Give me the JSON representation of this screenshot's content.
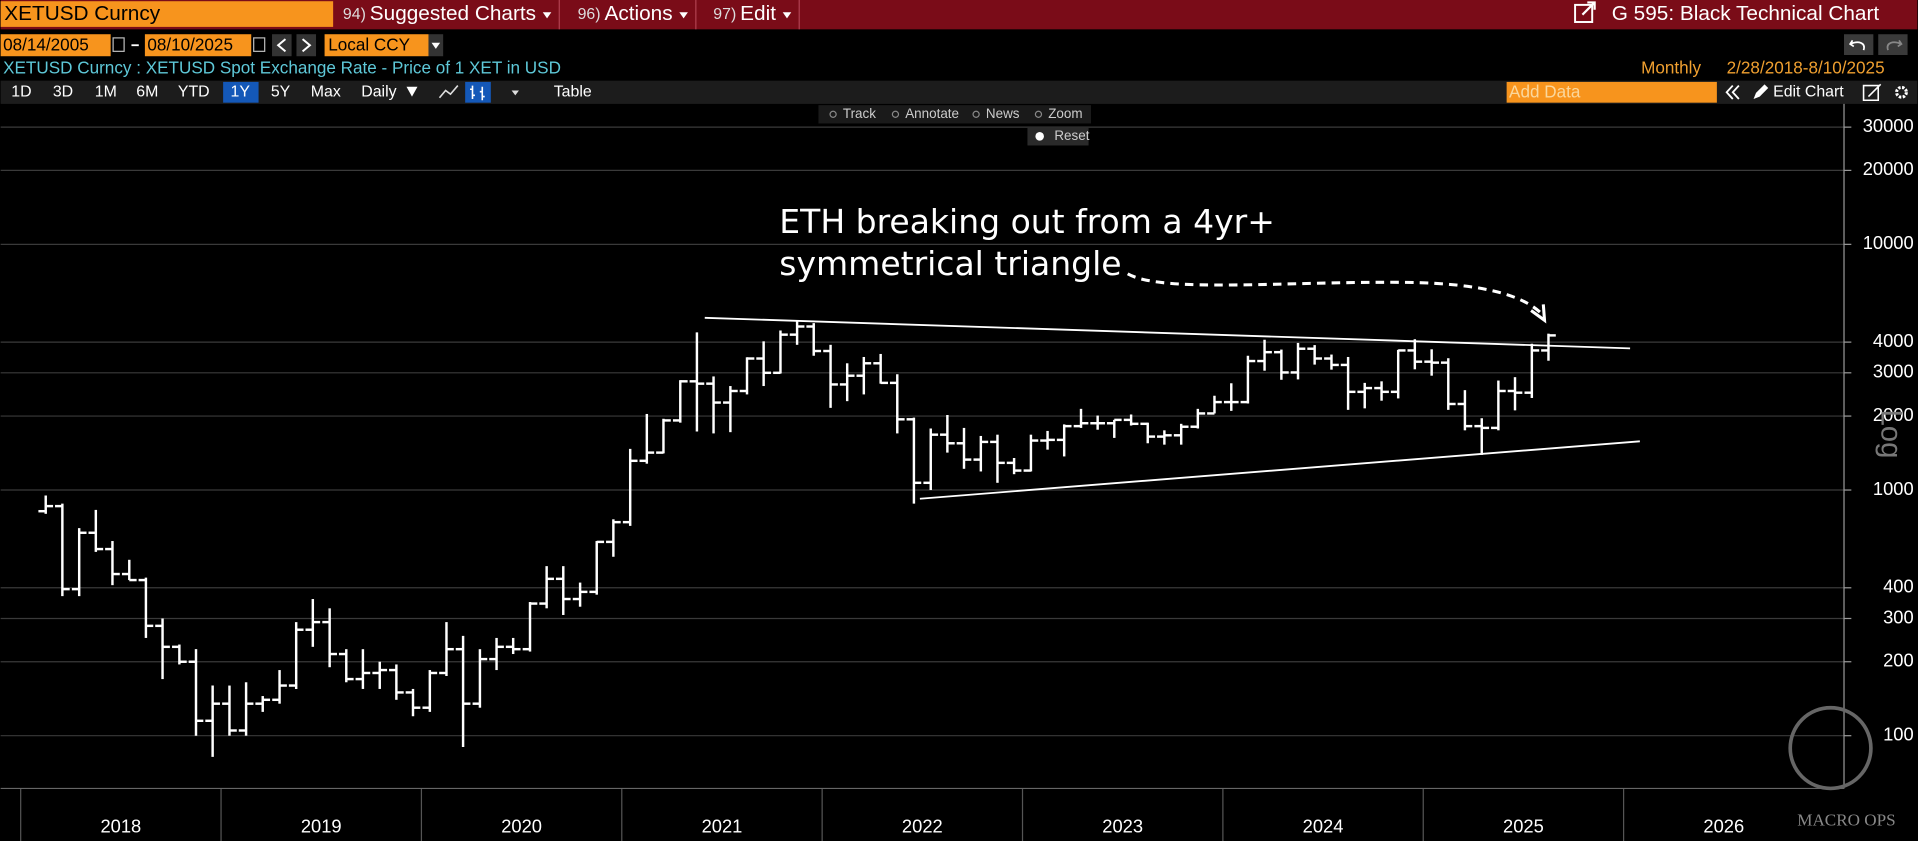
{
  "ui": {
    "security": "XETUSD Curncy",
    "menu": [
      {
        "key": "94)",
        "label": "Suggested Charts"
      },
      {
        "key": "96)",
        "label": "Actions"
      },
      {
        "key": "97)",
        "label": "Edit"
      }
    ],
    "page_title": "G 595: Black Technical Chart",
    "start_date": "08/14/2005",
    "end_date": "08/10/2025",
    "currency": "Local CCY",
    "description": "XETUSD Curncy : XETUSD Spot Exchange Rate - Price of 1 XET in USD",
    "periodicity": "Monthly",
    "range": "2/28/2018-8/10/2025",
    "periods": [
      "1D",
      "3D",
      "1M",
      "6M",
      "YTD",
      "1Y",
      "5Y",
      "Max"
    ],
    "frequency": "Daily",
    "table_button": "Table",
    "add_data": "Add Data",
    "edit_chart": "Edit Chart",
    "tools": [
      "Track",
      "Annotate",
      "News",
      "Zoom"
    ],
    "reset": "Reset",
    "scale_label": "Log",
    "watermark": "MACRO OPS"
  },
  "chart_data": {
    "type": "ohlc",
    "color": "#ffffff",
    "log_scale": true,
    "grid": true,
    "annotation": [
      "ETH breaking out from a 4yr+",
      "symmetrical triangle"
    ],
    "xlim": [
      2017.9,
      2027.1
    ],
    "xticks": [
      2018,
      2019,
      2020,
      2021,
      2022,
      2023,
      2024,
      2025,
      2026
    ],
    "ylim": [
      61,
      37300
    ],
    "yticks": [
      100,
      200,
      300,
      400,
      1000,
      2000,
      3000,
      4000,
      10000,
      20000,
      30000
    ],
    "x": [
      2018.125,
      2018.208,
      2018.292,
      2018.375,
      2018.458,
      2018.542,
      2018.625,
      2018.708,
      2018.792,
      2018.875,
      2018.958,
      2019.042,
      2019.125,
      2019.208,
      2019.292,
      2019.375,
      2019.458,
      2019.542,
      2019.625,
      2019.708,
      2019.792,
      2019.875,
      2019.958,
      2020.042,
      2020.125,
      2020.208,
      2020.292,
      2020.375,
      2020.458,
      2020.542,
      2020.625,
      2020.708,
      2020.792,
      2020.875,
      2020.958,
      2021.042,
      2021.125,
      2021.208,
      2021.292,
      2021.375,
      2021.458,
      2021.542,
      2021.625,
      2021.708,
      2021.792,
      2021.875,
      2021.958,
      2022.042,
      2022.125,
      2022.208,
      2022.292,
      2022.375,
      2022.458,
      2022.542,
      2022.625,
      2022.708,
      2022.792,
      2022.875,
      2022.958,
      2023.042,
      2023.125,
      2023.208,
      2023.292,
      2023.375,
      2023.458,
      2023.542,
      2023.625,
      2023.708,
      2023.792,
      2023.875,
      2023.958,
      2024.042,
      2024.125,
      2024.208,
      2024.292,
      2024.375,
      2024.458,
      2024.542,
      2024.625,
      2024.708,
      2024.792,
      2024.875,
      2024.958,
      2025.042,
      2025.125,
      2025.208,
      2025.292,
      2025.375,
      2025.458,
      2025.542,
      2025.625
    ],
    "open": [
      820,
      860,
      395,
      670,
      575,
      455,
      430,
      280,
      230,
      200,
      115,
      135,
      105,
      135,
      140,
      160,
      270,
      290,
      215,
      170,
      180,
      185,
      150,
      130,
      180,
      225,
      135,
      205,
      230,
      225,
      345,
      435,
      360,
      385,
      615,
      740,
      1315,
      1420,
      1920,
      2770,
      2710,
      2270,
      2530,
      3430,
      3000,
      4290,
      4630,
      3680,
      2690,
      2920,
      3280,
      2730,
      1940,
      1070,
      1680,
      1550,
      1330,
      1570,
      1290,
      1200,
      1590,
      1600,
      1820,
      1870,
      1870,
      1930,
      1860,
      1650,
      1670,
      1810,
      2050,
      2280,
      2280,
      3350,
      3640,
      3010,
      3760,
      3430,
      3230,
      2510,
      2600,
      2510,
      3700,
      3330,
      3300,
      2240,
      1820,
      1790,
      2530,
      2490,
      3700
    ],
    "high": [
      950,
      880,
      700,
      830,
      620,
      520,
      440,
      300,
      235,
      225,
      160,
      160,
      165,
      145,
      185,
      290,
      360,
      330,
      225,
      225,
      200,
      195,
      155,
      185,
      290,
      255,
      225,
      250,
      250,
      350,
      490,
      490,
      420,
      620,
      760,
      1470,
      2040,
      1950,
      2800,
      4380,
      2900,
      2650,
      3470,
      4030,
      4460,
      4870,
      4780,
      3900,
      3280,
      3480,
      3580,
      2960,
      1970,
      1780,
      2020,
      1790,
      1660,
      1680,
      1350,
      1680,
      1740,
      1850,
      2140,
      2010,
      1930,
      2030,
      1880,
      1750,
      1860,
      2140,
      2420,
      2720,
      3520,
      4090,
      3730,
      3970,
      3890,
      3560,
      3480,
      2730,
      2770,
      3720,
      4110,
      3740,
      3440,
      2550,
      1960,
      2790,
      2880,
      3940,
      4330
    ],
    "low": [
      800,
      370,
      370,
      560,
      410,
      430,
      250,
      170,
      195,
      100,
      82,
      100,
      100,
      125,
      135,
      155,
      230,
      190,
      165,
      155,
      155,
      140,
      120,
      125,
      175,
      90,
      130,
      185,
      215,
      220,
      330,
      310,
      335,
      375,
      535,
      715,
      1280,
      1410,
      1880,
      1730,
      1700,
      1720,
      2450,
      2650,
      2980,
      3900,
      3520,
      2160,
      2300,
      2450,
      2710,
      1700,
      880,
      1000,
      1420,
      1220,
      1190,
      1070,
      1160,
      1190,
      1460,
      1370,
      1790,
      1760,
      1630,
      1830,
      1550,
      1530,
      1530,
      1780,
      2050,
      2100,
      2250,
      3060,
      2810,
      2820,
      3240,
      3090,
      2120,
      2150,
      2310,
      2360,
      3100,
      2920,
      2120,
      1750,
      1390,
      1750,
      2110,
      2370,
      3360
    ],
    "close": [
      860,
      395,
      670,
      575,
      455,
      430,
      280,
      230,
      200,
      115,
      135,
      105,
      135,
      140,
      160,
      270,
      290,
      215,
      170,
      180,
      185,
      150,
      130,
      180,
      225,
      135,
      205,
      230,
      225,
      345,
      435,
      360,
      385,
      615,
      740,
      1315,
      1420,
      1920,
      2770,
      2710,
      2270,
      2530,
      3430,
      3000,
      4290,
      4630,
      3680,
      2690,
      2920,
      3280,
      2730,
      1940,
      1070,
      1680,
      1550,
      1330,
      1570,
      1290,
      1200,
      1590,
      1600,
      1820,
      1870,
      1870,
      1930,
      1860,
      1650,
      1670,
      1810,
      2050,
      2280,
      2280,
      3350,
      3640,
      3010,
      3760,
      3430,
      3230,
      2510,
      2600,
      2510,
      3700,
      3330,
      3300,
      2240,
      1820,
      1790,
      2530,
      2490,
      3700,
      4260
    ]
  }
}
